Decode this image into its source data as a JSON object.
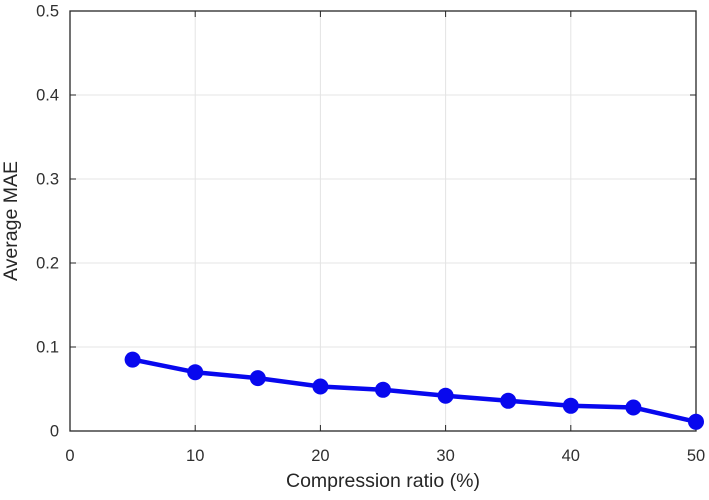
{
  "chart_data": {
    "type": "line",
    "title": "",
    "xlabel": "Compression ratio (%)",
    "ylabel": "Average MAE",
    "series": [
      {
        "name": "average-mae",
        "x": [
          5,
          10,
          15,
          20,
          25,
          30,
          35,
          40,
          45,
          50
        ],
        "y": [
          0.085,
          0.07,
          0.063,
          0.053,
          0.049,
          0.042,
          0.036,
          0.03,
          0.028,
          0.011
        ]
      }
    ],
    "xlim": [
      0,
      50
    ],
    "ylim": [
      0,
      0.5
    ],
    "x_ticks": [
      0,
      10,
      20,
      30,
      40,
      50
    ],
    "x_tick_labels": [
      "0",
      "10",
      "20",
      "30",
      "40",
      "50"
    ],
    "y_ticks": [
      0,
      0.1,
      0.2,
      0.3,
      0.4,
      0.5
    ],
    "y_tick_labels": [
      "0",
      "0.1",
      "0.2",
      "0.3",
      "0.4",
      "0.5"
    ],
    "grid": true,
    "legend": null,
    "marker": "filled-circle",
    "colors": {
      "line": "#0808ee",
      "marker_fill": "#0808ee",
      "axis": "#262626",
      "grid": "#e4e4e4",
      "tick_label": "#303030",
      "axis_label": "#262626",
      "background": "#ffffff"
    }
  }
}
